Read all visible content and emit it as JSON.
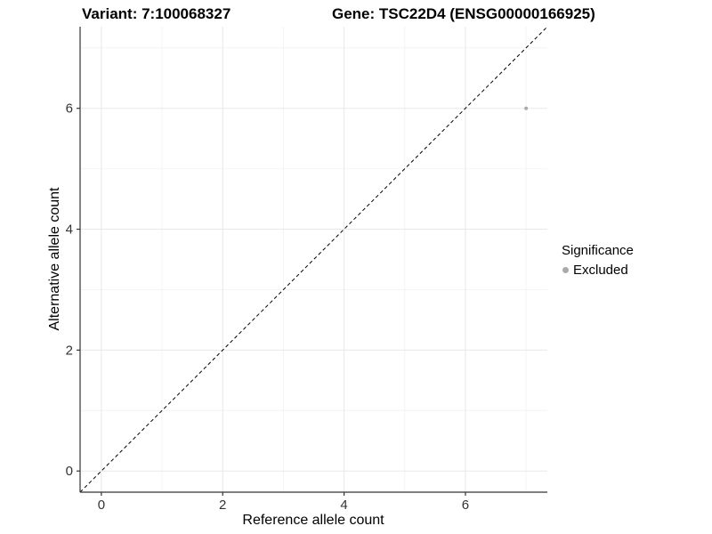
{
  "header": {
    "variant_title": "Variant: 7:100068327",
    "gene_title": "Gene: TSC22D4 (ENSG00000166925)"
  },
  "chart_data": {
    "type": "scatter",
    "xlabel": "Reference allele count",
    "ylabel": "Alternative allele count",
    "xlim": [
      -0.35,
      7.35
    ],
    "ylim": [
      -0.35,
      7.35
    ],
    "xticks": [
      0,
      2,
      4,
      6
    ],
    "yticks": [
      0,
      2,
      4,
      6
    ],
    "minor_xticks": [
      1,
      3,
      5,
      7
    ],
    "minor_yticks": [
      1,
      3,
      5,
      7
    ],
    "grid": true,
    "identity_line": {
      "style": "dashed",
      "from": [
        -0.35,
        -0.35
      ],
      "to": [
        7.35,
        7.35
      ],
      "color": "#000000"
    },
    "points": [
      {
        "x": 7,
        "y": 6,
        "series": "Excluded",
        "color": "#aaaaaa",
        "radius": 2
      }
    ],
    "legend": {
      "title": "Significance",
      "position": "right",
      "items": [
        {
          "label": "Excluded",
          "color": "#aaaaaa"
        }
      ]
    }
  },
  "colors": {
    "background": "#ffffff",
    "axis_line": "#333333",
    "tick_label": "#333333",
    "grid_major": "#e8e8e8",
    "grid_minor": "#f4f4f4",
    "point": "#aaaaaa"
  }
}
